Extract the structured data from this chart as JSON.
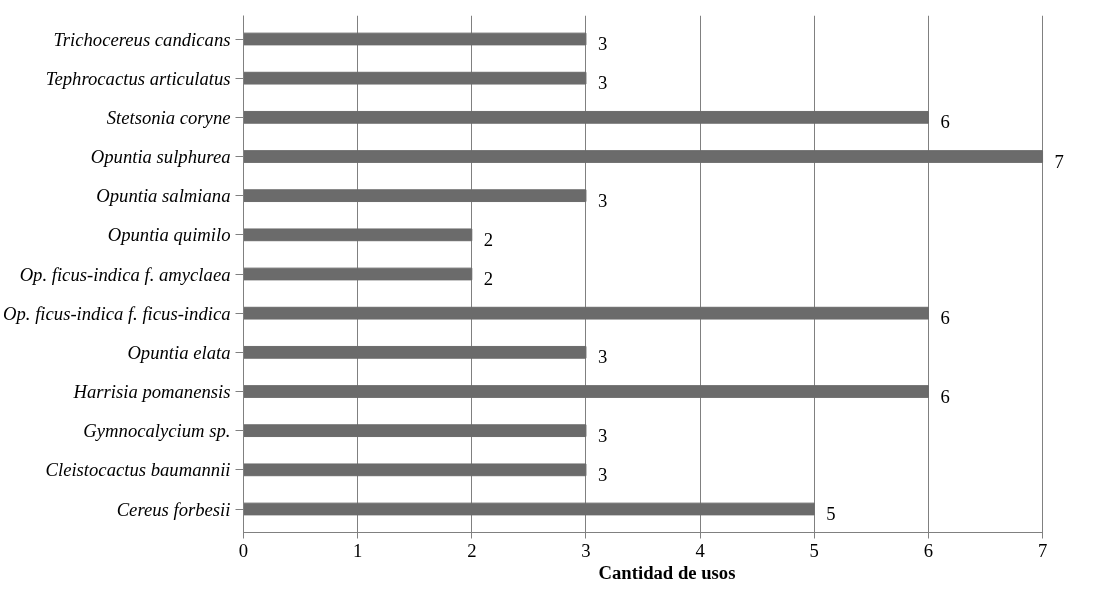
{
  "chart_data": {
    "type": "bar",
    "orientation": "horizontal",
    "xlabel": "Cantidad de usos",
    "categories": [
      "Trichocereus candicans",
      "Tephrocactus articulatus",
      "Stetsonia coryne",
      "Opuntia sulphurea",
      "Opuntia salmiana",
      "Opuntia quimilo",
      "Op. ficus-indica f. amyclaea",
      "Op. ficus-indica f. ficus-indica",
      "Opuntia elata",
      "Harrisia pomanensis",
      "Gymnocalycium sp.",
      "Cleistocactus baumannii",
      "Cereus forbesii"
    ],
    "values": [
      3,
      3,
      6,
      7,
      3,
      2,
      2,
      6,
      3,
      6,
      3,
      3,
      5
    ],
    "color": "#6b6b6b",
    "xlim": [
      0,
      7
    ],
    "xticks": [
      0,
      1,
      2,
      3,
      4,
      5,
      6,
      7
    ],
    "grid": "x",
    "data_labels": true
  }
}
